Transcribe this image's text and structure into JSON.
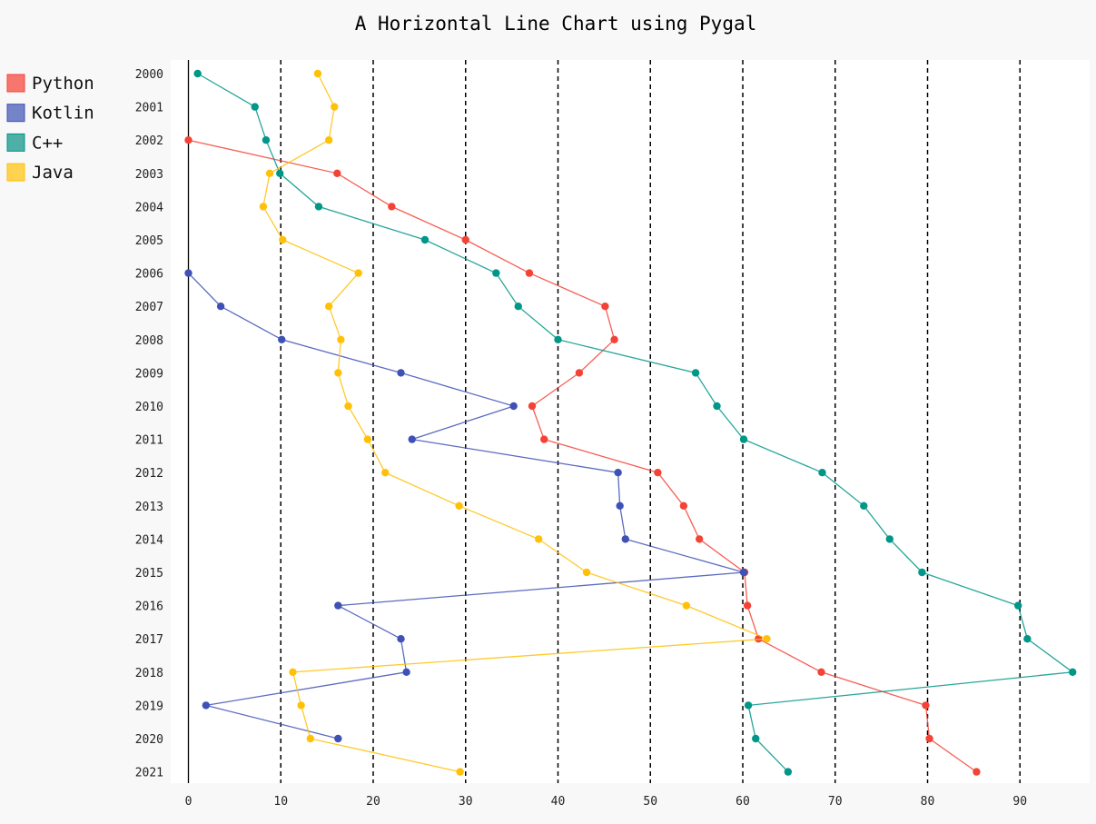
{
  "chart_data": {
    "type": "line",
    "orientation": "horizontal",
    "title": "A Horizontal Line Chart using Pygal",
    "xlabel": "",
    "ylabel": "",
    "xlim": [
      0,
      97
    ],
    "x_ticks": [
      "0",
      "10",
      "20",
      "30",
      "40",
      "50",
      "60",
      "70",
      "80",
      "90"
    ],
    "categories": [
      "2000",
      "2001",
      "2002",
      "2003",
      "2004",
      "2005",
      "2006",
      "2007",
      "2008",
      "2009",
      "2010",
      "2011",
      "2012",
      "2013",
      "2014",
      "2015",
      "2016",
      "2017",
      "2018",
      "2019",
      "2020",
      "2021"
    ],
    "grid": "vertical dashed",
    "legend_position": "left",
    "series": [
      {
        "name": "Python",
        "color": "#f44336",
        "legend_color": "#f7776e",
        "values": [
          null,
          null,
          0,
          16.1,
          22,
          30,
          36.9,
          45.1,
          46.1,
          42.3,
          37.2,
          38.5,
          50.8,
          53.6,
          55.3,
          60.2,
          60.5,
          61.7,
          68.5,
          79.8,
          80.2,
          85.3
        ]
      },
      {
        "name": "Kotlin",
        "color": "#3f51b5",
        "legend_color": "#7583c9",
        "values": [
          null,
          null,
          null,
          null,
          null,
          null,
          0,
          3.5,
          10.1,
          23,
          35.2,
          24.2,
          46.5,
          46.7,
          47.3,
          60.1,
          16.2,
          23,
          23.6,
          1.9,
          16.2,
          null
        ]
      },
      {
        "name": "C++",
        "color": "#009688",
        "legend_color": "#4dafa6",
        "values": [
          1,
          7.2,
          8.4,
          9.9,
          14.1,
          25.6,
          33.3,
          35.7,
          40,
          54.9,
          57.2,
          60.1,
          68.6,
          73.1,
          75.9,
          79.4,
          89.8,
          90.8,
          95.7,
          60.6,
          61.4,
          64.9
        ]
      },
      {
        "name": "Java",
        "color": "#ffc107",
        "legend_color": "#ffd24f",
        "values": [
          14,
          15.8,
          15.2,
          8.8,
          8.1,
          10.2,
          18.4,
          15.2,
          16.5,
          16.2,
          17.3,
          19.4,
          21.3,
          29.3,
          37.9,
          43.1,
          53.9,
          62.6,
          11.3,
          12.2,
          13.2,
          29.4
        ]
      }
    ]
  }
}
